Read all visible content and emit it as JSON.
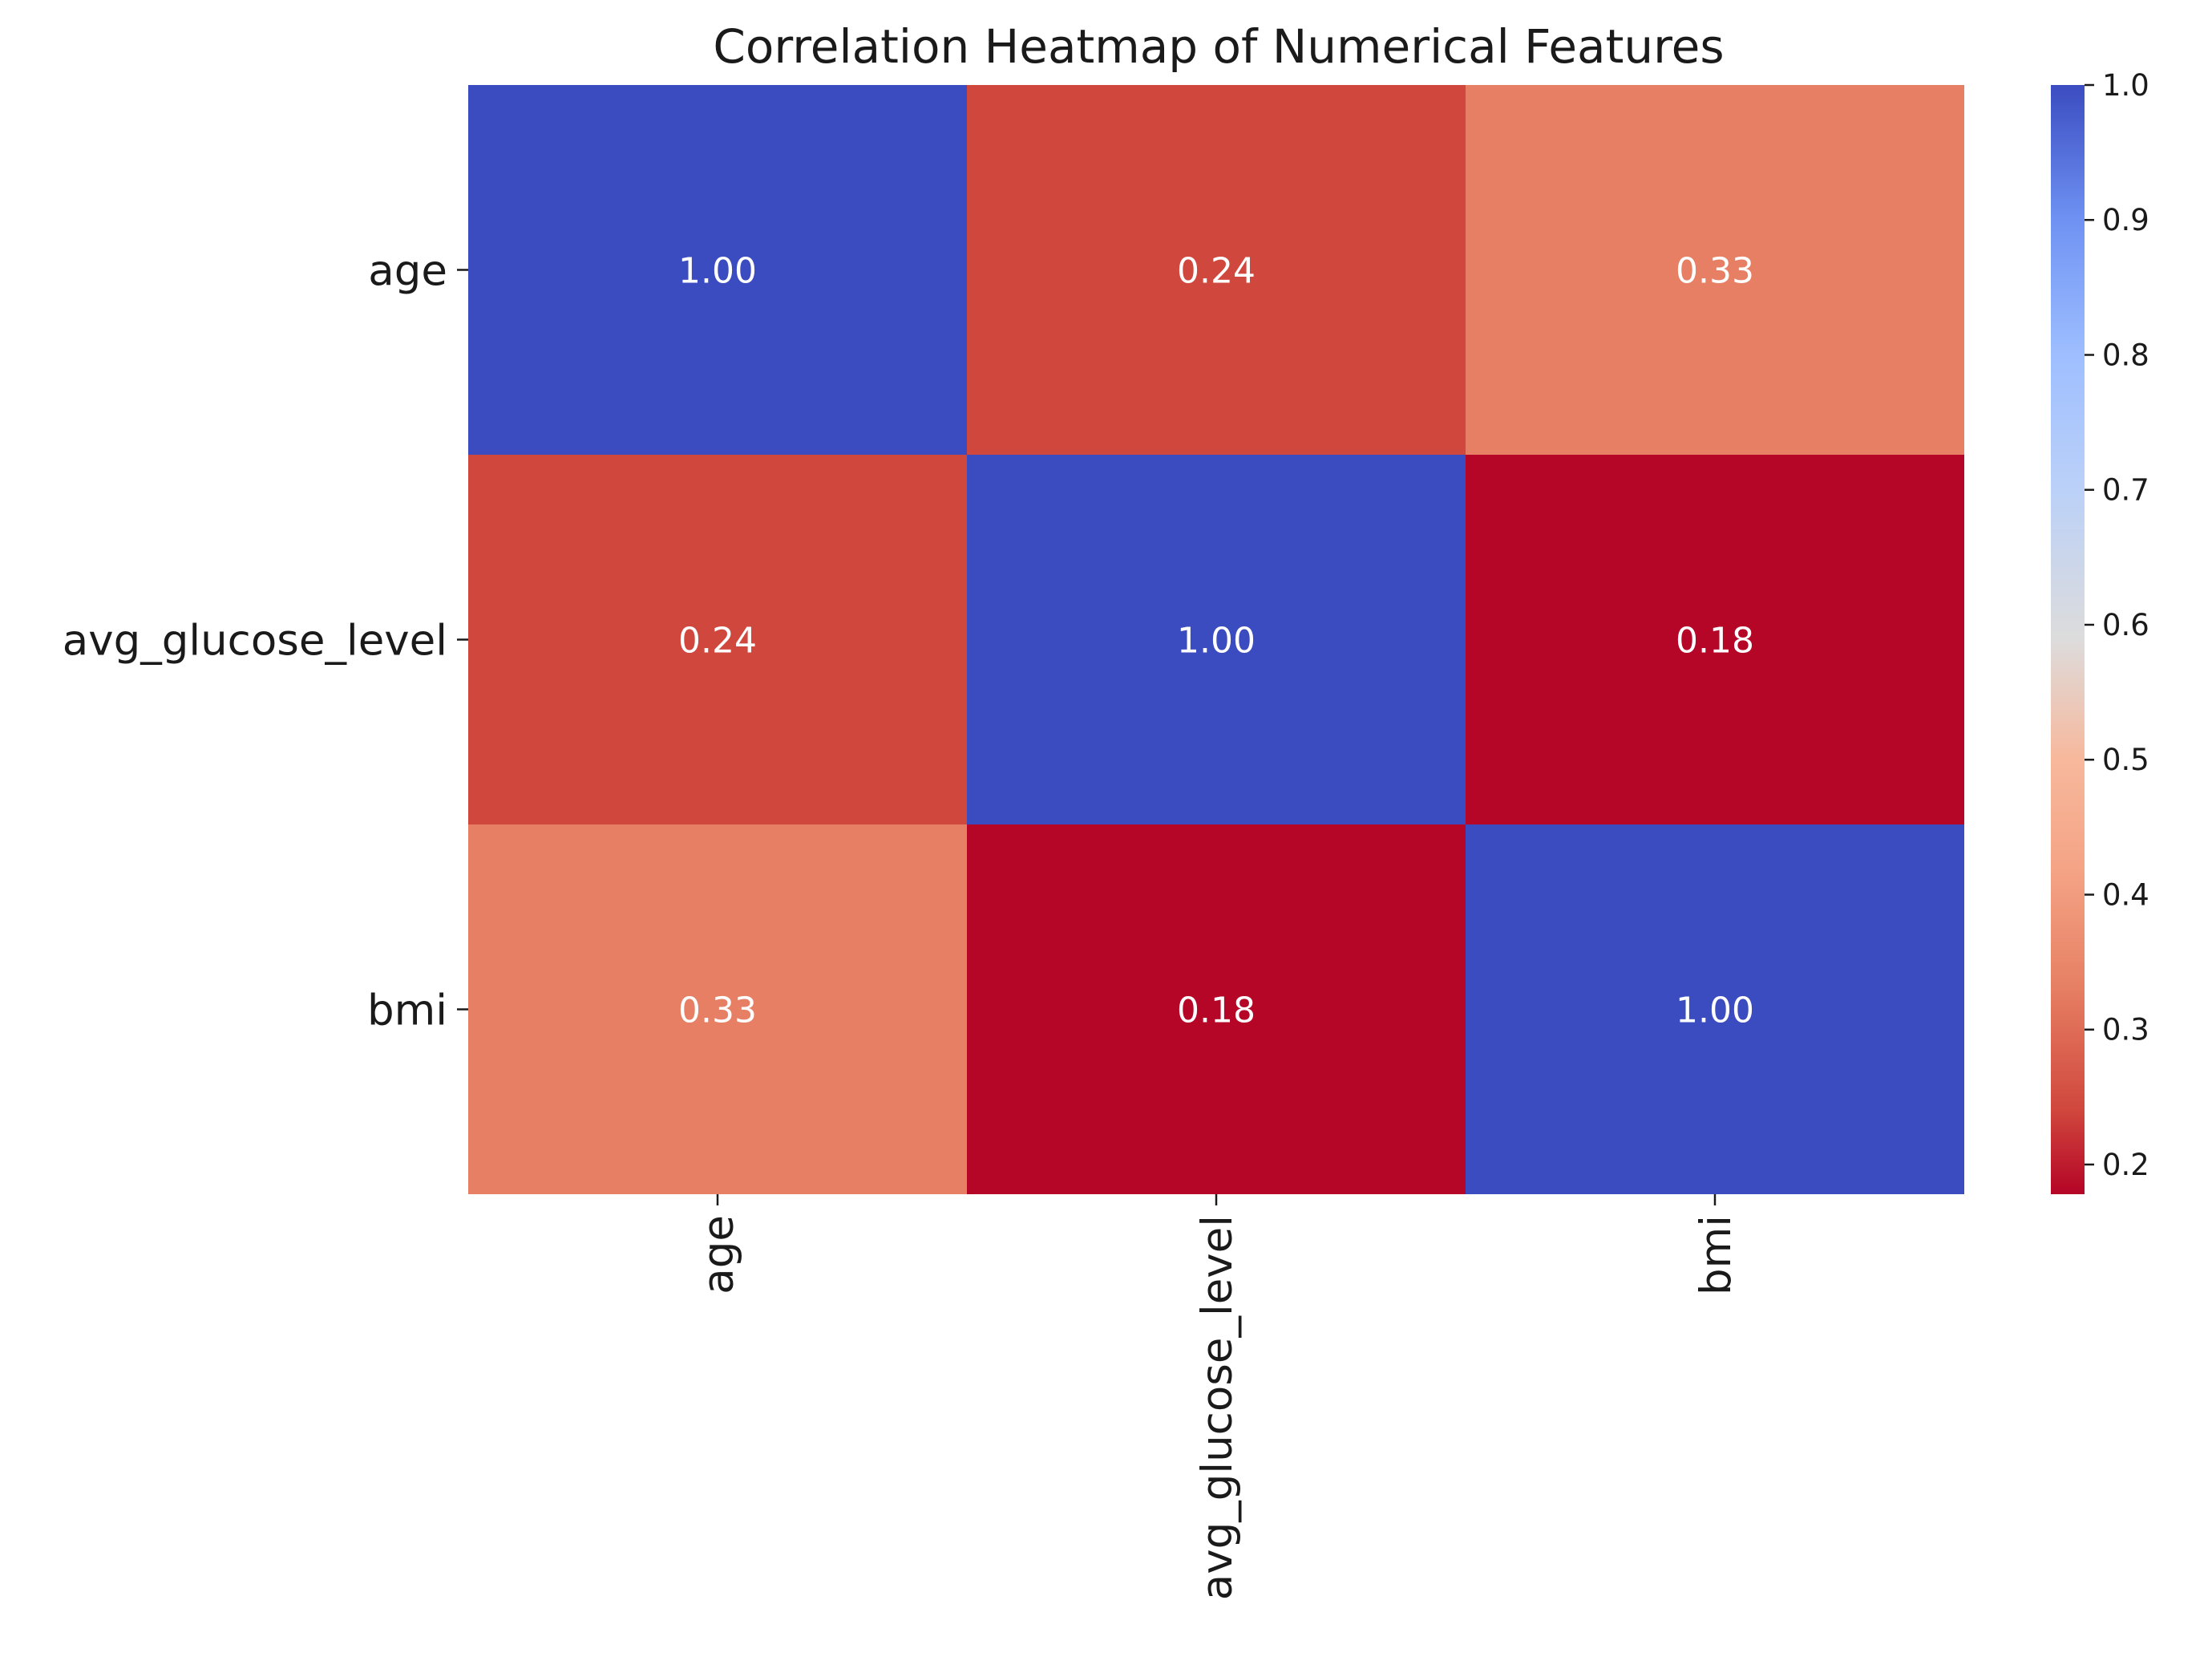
{
  "chart_data": {
    "type": "heatmap",
    "title": "Correlation Heatmap of Numerical Features",
    "xlabel": "",
    "ylabel": "",
    "x_categories": [
      "age",
      "avg_glucose_level",
      "bmi"
    ],
    "y_categories": [
      "age",
      "avg_glucose_level",
      "bmi"
    ],
    "values": [
      [
        1.0,
        0.24,
        0.33
      ],
      [
        0.24,
        1.0,
        0.18
      ],
      [
        0.33,
        0.18,
        1.0
      ]
    ],
    "value_format": "2 decimals",
    "colormap": "coolwarm_r",
    "colorbar": {
      "range": [
        0.178,
        1.0
      ],
      "ticks": [
        "0.2",
        "0.3",
        "0.4",
        "0.5",
        "0.6",
        "0.7",
        "0.8",
        "0.9",
        "1.0"
      ],
      "stops": [
        {
          "value": 0.178,
          "color": "#b40426"
        },
        {
          "value": 0.24,
          "color": "#d0473d"
        },
        {
          "value": 0.33,
          "color": "#e67f63"
        },
        {
          "value": 0.42,
          "color": "#f5a486"
        },
        {
          "value": 0.5,
          "color": "#f7b89c"
        },
        {
          "value": 0.589,
          "color": "#dddcdc"
        },
        {
          "value": 0.7,
          "color": "#bbd1f8"
        },
        {
          "value": 0.8,
          "color": "#9ebeff"
        },
        {
          "value": 0.9,
          "color": "#6f92f3"
        },
        {
          "value": 1.0,
          "color": "#3b4cc0"
        }
      ]
    },
    "grid": false,
    "legend": "colorbar-right"
  }
}
